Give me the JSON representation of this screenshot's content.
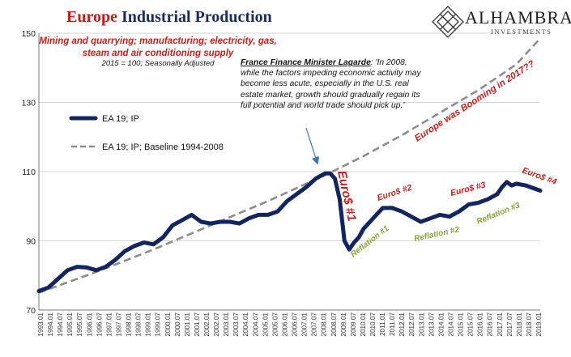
{
  "title": {
    "accent": "Europe",
    "rest": "Industrial Production"
  },
  "subtitle": "Mining and quarrying; manufacturing; electricity, gas, steam and air conditioning supply",
  "baseline_note": "2015 = 100; Seasonally Adjusted",
  "logo": {
    "name": "ALHAMBRA",
    "sub": "INVESTMENTS",
    "icon": "diamond-lattice-icon"
  },
  "quote": {
    "speaker": "France Finance Minister Lagarde",
    "text": ": 'In 2008, while the factors impeding economic activity may become less acute, especially in the U.S. real estate market, growth should gradually regain its full potential and world trade should pick up.'"
  },
  "colors": {
    "accent": "#c0201c",
    "navy": "#1a2c5a",
    "series": "#13255f",
    "baseline": "#8c8c8c",
    "annotation_green": "#86a23a",
    "grid": "#c8c8c8"
  },
  "chart_data": {
    "type": "line",
    "ylim": [
      70,
      150
    ],
    "y_ticks": [
      70,
      90,
      110,
      130,
      150
    ],
    "x_tick_labels": [
      "1993.01",
      "1994.01",
      "1994.07",
      "1995.01",
      "1995.07",
      "1996.01",
      "1996.07",
      "1997.01",
      "1997.07",
      "1998.01",
      "1998.07",
      "1999.01",
      "1999.07",
      "2000.01",
      "2000.07",
      "2001.01",
      "2001.07",
      "2002.01",
      "2002.07",
      "2003.01",
      "2003.07",
      "2004.01",
      "2004.07",
      "2005.01",
      "2005.07",
      "2006.01",
      "2006.07",
      "2007.01",
      "2007.07",
      "2008.01",
      "2008.07",
      "2009.01",
      "2009.07",
      "2010.01",
      "2010.07",
      "2011.01",
      "2011.07",
      "2012.01",
      "2012.07",
      "2013.01",
      "2013.07",
      "2014.01",
      "2014.07",
      "2015.01",
      "2015.07",
      "2016.01",
      "2016.07",
      "2017.01",
      "2017.07",
      "2018.01",
      "2018.07",
      "2019.01"
    ],
    "grid": "horizontal",
    "legend_placement": "left",
    "series": [
      {
        "name": "EA 19; IP",
        "style": "solid-thick",
        "x": [
          "1993-01",
          "1993-07",
          "1994-01",
          "1994-07",
          "1995-01",
          "1995-07",
          "1996-01",
          "1996-07",
          "1997-01",
          "1997-07",
          "1998-01",
          "1998-07",
          "1999-01",
          "1999-07",
          "2000-01",
          "2000-07",
          "2001-01",
          "2001-07",
          "2002-01",
          "2002-07",
          "2003-01",
          "2003-07",
          "2004-01",
          "2004-07",
          "2005-01",
          "2005-07",
          "2006-01",
          "2006-07",
          "2007-01",
          "2007-07",
          "2008-01",
          "2008-04",
          "2008-07",
          "2008-10",
          "2009-01",
          "2009-04",
          "2009-07",
          "2009-10",
          "2010-01",
          "2010-07",
          "2011-01",
          "2011-07",
          "2012-01",
          "2012-07",
          "2013-01",
          "2013-07",
          "2014-01",
          "2014-07",
          "2015-01",
          "2015-07",
          "2016-01",
          "2016-07",
          "2017-01",
          "2017-04",
          "2017-07",
          "2017-10",
          "2018-01",
          "2018-07",
          "2019-01",
          "2019-04"
        ],
        "values": [
          75.5,
          76.5,
          79,
          81.5,
          82.5,
          82.3,
          81.5,
          82.5,
          84.5,
          87,
          88.5,
          89.5,
          89,
          91,
          94.5,
          96,
          97.5,
          95.5,
          95,
          95.5,
          95.5,
          95,
          96.5,
          97.5,
          97.5,
          98.5,
          101.5,
          103.5,
          105.5,
          108,
          109.5,
          109.5,
          108,
          102,
          90,
          87.5,
          89.5,
          91,
          93.5,
          96.5,
          99.5,
          99.5,
          98.5,
          97,
          95.5,
          96.5,
          97.5,
          97,
          98.5,
          100.5,
          101,
          102,
          103.5,
          105.5,
          107,
          106,
          106.5,
          106,
          105,
          104.5
        ]
      },
      {
        "name": "EA 19; IP; Baseline 1994-2008",
        "style": "dashed",
        "x": [
          "1993-01",
          "1996-01",
          "1999-01",
          "2002-01",
          "2005-01",
          "2008-01",
          "2010-01",
          "2012-01",
          "2014-01",
          "2016-01",
          "2018-01",
          "2019-04"
        ],
        "values": [
          75,
          81,
          87.5,
          94.5,
          101.5,
          109,
          114.5,
          120.5,
          127,
          133.5,
          141,
          148.5
        ]
      }
    ],
    "annotations": [
      {
        "text": "Euro$ #1",
        "color": "red"
      },
      {
        "text": "Euro$ #2",
        "color": "red"
      },
      {
        "text": "Euro$ #3",
        "color": "red"
      },
      {
        "text": "Euro$ #4",
        "color": "red"
      },
      {
        "text": "Reflation #1",
        "color": "green"
      },
      {
        "text": "Reflation #2",
        "color": "green"
      },
      {
        "text": "Reflation #3",
        "color": "green"
      },
      {
        "text": "Europe was Booming in 2017??",
        "color": "red"
      }
    ]
  }
}
